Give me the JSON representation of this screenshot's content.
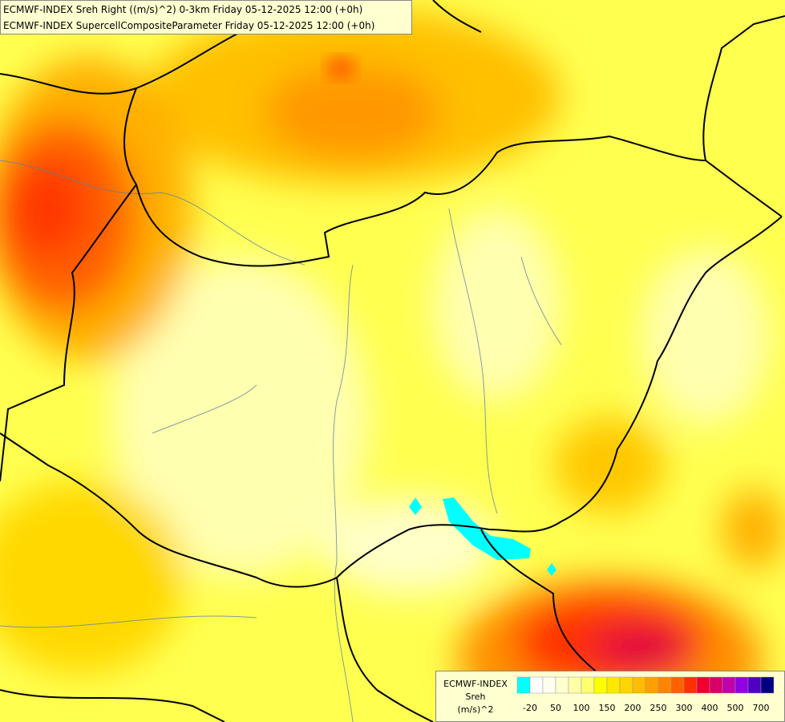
{
  "header": {
    "lines": [
      "ECMWF-INDEX Sreh Right ((m/s)^2) 0-3km Friday 05-12-2025 12:00 (+0h)",
      "ECMWF-INDEX SupercellCompositeParameter Friday 05-12-2025 12:00 (+0h)"
    ]
  },
  "legend": {
    "title_lines": [
      "ECMWF-INDEX",
      "Sreh",
      "(m/s)^2"
    ],
    "colors": [
      "#00ffff",
      "#ffffff",
      "#fffff0",
      "#ffffd0",
      "#ffffa8",
      "#ffff70",
      "#ffff00",
      "#ffe800",
      "#ffd400",
      "#ffbc00",
      "#ffa000",
      "#ff8400",
      "#ff6000",
      "#ff3000",
      "#f00030",
      "#d80068",
      "#c000a8",
      "#9000e0",
      "#5000c0",
      "#000080"
    ],
    "labels": [
      "-20",
      "50",
      "100",
      "150",
      "200",
      "250",
      "300",
      "400",
      "500",
      "700"
    ]
  }
}
